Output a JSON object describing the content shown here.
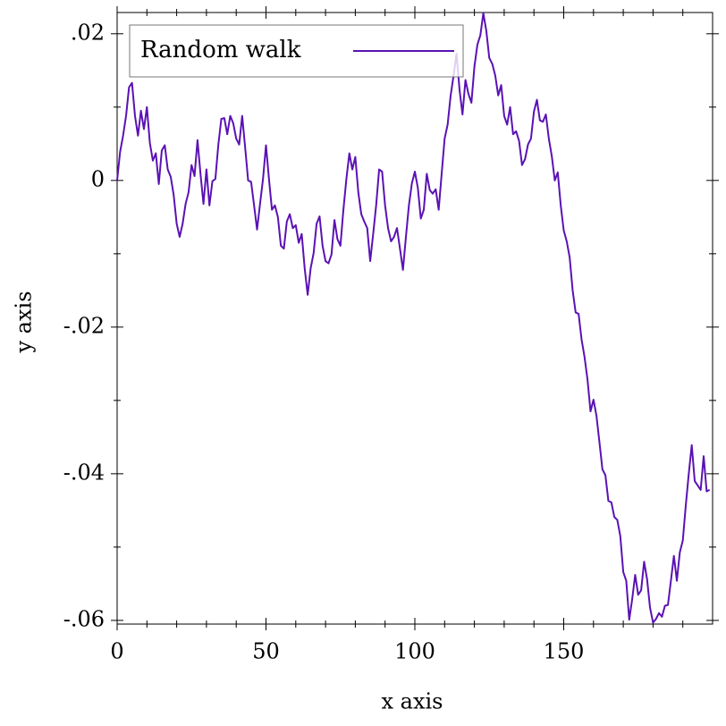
{
  "chart_data": {
    "type": "line",
    "xlabel": "x axis",
    "ylabel": "y axis",
    "legend": "top-left",
    "x": [
      0,
      1,
      2,
      3,
      4,
      5,
      6,
      7,
      8,
      9,
      10,
      11,
      12,
      13,
      14,
      15,
      16,
      17,
      18,
      19,
      20,
      21,
      22,
      23,
      24,
      25,
      26,
      27,
      28,
      29,
      30,
      31,
      32,
      33,
      34,
      35,
      36,
      37,
      38,
      39,
      40,
      41,
      42,
      43,
      44,
      45,
      46,
      47,
      48,
      49,
      50,
      51,
      52,
      53,
      54,
      55,
      56,
      57,
      58,
      59,
      60,
      61,
      62,
      63,
      64,
      65,
      66,
      67,
      68,
      69,
      70,
      71,
      72,
      73,
      74,
      75,
      76,
      77,
      78,
      79,
      80,
      81,
      82,
      83,
      84,
      85,
      86,
      87,
      88,
      89,
      90,
      91,
      92,
      93,
      94,
      95,
      96,
      97,
      98,
      99,
      100,
      101,
      102,
      103,
      104,
      105,
      106,
      107,
      108,
      109,
      110,
      111,
      112,
      113,
      114,
      115,
      116,
      117,
      118,
      119,
      120,
      121,
      122,
      123,
      124,
      125,
      126,
      127,
      128,
      129,
      130,
      131,
      132,
      133,
      134,
      135,
      136,
      137,
      138,
      139,
      140,
      141,
      142,
      143,
      144,
      145,
      146,
      147,
      148,
      149,
      150,
      151,
      152,
      153,
      154,
      155,
      156,
      157,
      158,
      159,
      160,
      161,
      162,
      163,
      164,
      165,
      166,
      167,
      168,
      169,
      170,
      171,
      172,
      173,
      174,
      175,
      176,
      177,
      178,
      179,
      180,
      181,
      182,
      183,
      184,
      185,
      186,
      187,
      188,
      189,
      190,
      191,
      192,
      193,
      194,
      195,
      196,
      197,
      198,
      199
    ],
    "series": [
      {
        "name": "Random walk",
        "color": "#5a12b4",
        "values": [
          0,
          0.0039,
          0.0061,
          0.0088,
          0.0127,
          0.0133,
          0.0088,
          0.0061,
          0.0095,
          0.007,
          0.01,
          0.0051,
          0.0027,
          0.0037,
          -0.0005,
          0.0041,
          0.0048,
          0.0015,
          0.0005,
          -0.002,
          -0.0059,
          -0.0077,
          -0.0059,
          -0.0032,
          -0.0016,
          0.0021,
          0.0006,
          0.0055,
          0.0009,
          -0.0032,
          0.0015,
          -0.0034,
          -0.0001,
          0.0002,
          0.0049,
          0.0084,
          0.0085,
          0.0063,
          0.0088,
          0.0078,
          0.0057,
          0.0049,
          0.0088,
          0.0045,
          0,
          -0.0002,
          -0.0034,
          -0.0067,
          -0.0032,
          0.0002,
          0.0048,
          0.0002,
          -0.004,
          -0.0034,
          -0.005,
          -0.0089,
          -0.0093,
          -0.0056,
          -0.0046,
          -0.0065,
          -0.0061,
          -0.0085,
          -0.0073,
          -0.012,
          -0.0156,
          -0.012,
          -0.0099,
          -0.0059,
          -0.0049,
          -0.0089,
          -0.011,
          -0.0113,
          -0.0101,
          -0.0054,
          -0.008,
          -0.0089,
          -0.004,
          0.0002,
          0.0037,
          0.0015,
          0.0032,
          -0.0016,
          -0.0046,
          -0.0056,
          -0.0065,
          -0.011,
          -0.0073,
          -0.0034,
          0.0015,
          0.0012,
          -0.0034,
          -0.0065,
          -0.0083,
          -0.0077,
          -0.0065,
          -0.0093,
          -0.0122,
          -0.0077,
          -0.0034,
          -0.0004,
          0.0012,
          -0.001,
          -0.0052,
          -0.004,
          0.0009,
          -0.0013,
          -0.0018,
          -0.0012,
          -0.004,
          0.0009,
          0.0057,
          0.0076,
          0.0115,
          0.0143,
          0.0173,
          0.0124,
          0.009,
          0.0137,
          0.0118,
          0.0106,
          0.0155,
          0.0185,
          0.0198,
          0.0228,
          0.0204,
          0.0167,
          0.0159,
          0.0143,
          0.0116,
          0.013,
          0.0088,
          0.0076,
          0.01,
          0.0063,
          0.0067,
          0.0054,
          0.0021,
          0.0029,
          0.0049,
          0.0057,
          0.0094,
          0.011,
          0.0082,
          0.008,
          0.009,
          0.0057,
          0.0033,
          0,
          0.0011,
          -0.0034,
          -0.0068,
          -0.0083,
          -0.0105,
          -0.015,
          -0.018,
          -0.0182,
          -0.0217,
          -0.0241,
          -0.0272,
          -0.0315,
          -0.0299,
          -0.0321,
          -0.0357,
          -0.0394,
          -0.0402,
          -0.0437,
          -0.0439,
          -0.0459,
          -0.0463,
          -0.0485,
          -0.0534,
          -0.0546,
          -0.0599,
          -0.0571,
          -0.0538,
          -0.0565,
          -0.0559,
          -0.052,
          -0.0544,
          -0.0583,
          -0.0603,
          -0.0598,
          -0.059,
          -0.0595,
          -0.058,
          -0.0579,
          -0.0546,
          -0.0512,
          -0.0546,
          -0.0507,
          -0.0491,
          -0.0443,
          -0.04,
          -0.0361,
          -0.041,
          -0.0416,
          -0.0422,
          -0.0376,
          -0.0424,
          -0.0422
        ]
      }
    ],
    "xlim": [
      0,
      200
    ],
    "ylim": [
      -0.0605,
      0.0229
    ],
    "xticks": [
      0,
      50,
      100,
      150
    ],
    "yticks": [
      {
        "value": 0.02,
        "label": ".02"
      },
      0,
      {
        "value": -0.02,
        "label": "-.02"
      },
      {
        "value": -0.04,
        "label": "-.04"
      },
      {
        "value": -0.06,
        "label": "-.06"
      }
    ],
    "xminorticks": [
      10,
      20,
      30,
      40,
      60,
      70,
      80,
      90,
      110,
      120,
      130,
      140,
      160,
      170,
      180,
      190
    ],
    "yminorticks": [
      0.01,
      -0.01,
      -0.03,
      -0.05
    ]
  }
}
